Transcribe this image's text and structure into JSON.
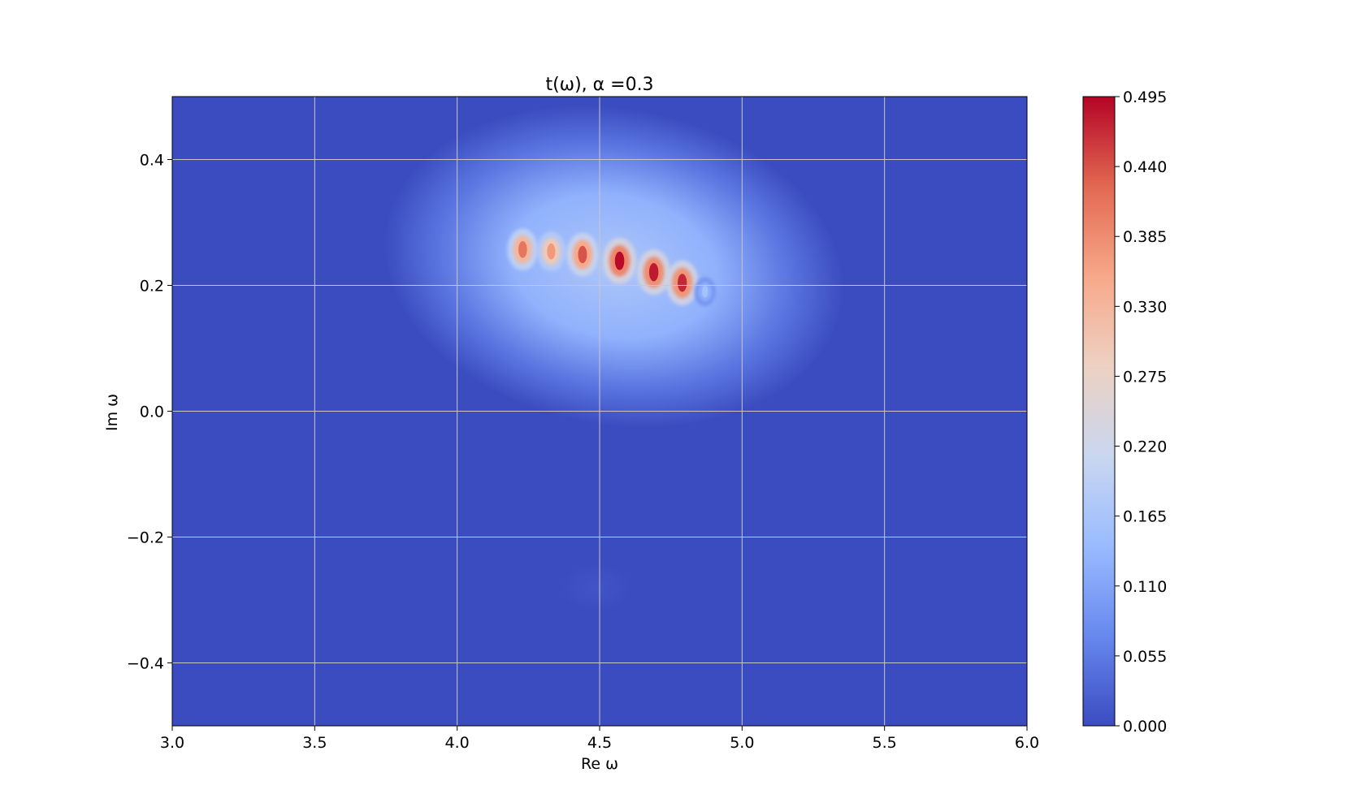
{
  "chart_data": {
    "type": "heatmap",
    "title": "t(ω), α =0.3",
    "xlabel": "Re ω",
    "ylabel": "Im ω",
    "xlim": [
      3.0,
      6.0
    ],
    "ylim": [
      -0.5,
      0.5
    ],
    "x_ticks": [
      "3.0",
      "3.5",
      "4.0",
      "4.5",
      "5.0",
      "5.5",
      "6.0"
    ],
    "x_tick_values": [
      3.0,
      3.5,
      4.0,
      4.5,
      5.0,
      5.5,
      6.0
    ],
    "y_ticks": [
      "−0.4",
      "−0.2",
      "0.0",
      "0.2",
      "0.4"
    ],
    "y_tick_values": [
      -0.4,
      -0.2,
      0.0,
      0.2,
      0.4
    ],
    "grid": true,
    "colormap": "coolwarm",
    "colorbar": {
      "range": [
        0.0,
        0.495
      ],
      "ticks": [
        "0.000",
        "0.055",
        "0.110",
        "0.165",
        "0.220",
        "0.275",
        "0.330",
        "0.385",
        "0.440",
        "0.495"
      ],
      "tick_values": [
        0.0,
        0.055,
        0.11,
        0.165,
        0.22,
        0.275,
        0.33,
        0.385,
        0.44,
        0.495
      ]
    },
    "colormap_stops": [
      "#3b4cc0",
      "#6788ee",
      "#9abbff",
      "#c9d7f0",
      "#edd1c2",
      "#f7a889",
      "#e26952",
      "#b40426"
    ],
    "background_value": 0.0,
    "halo": {
      "center_x": 4.55,
      "center_y": 0.23,
      "value": 0.17
    },
    "peaks": [
      {
        "x": 4.23,
        "y": 0.257,
        "value": 0.41
      },
      {
        "x": 4.33,
        "y": 0.254,
        "value": 0.37
      },
      {
        "x": 4.44,
        "y": 0.249,
        "value": 0.44
      },
      {
        "x": 4.57,
        "y": 0.239,
        "value": 0.49
      },
      {
        "x": 4.69,
        "y": 0.221,
        "value": 0.48
      },
      {
        "x": 4.79,
        "y": 0.204,
        "value": 0.47
      },
      {
        "x": 4.87,
        "y": 0.19,
        "value": 0.16
      }
    ],
    "secondary_bump": {
      "x": 4.49,
      "y": -0.28,
      "value": 0.01
    }
  }
}
